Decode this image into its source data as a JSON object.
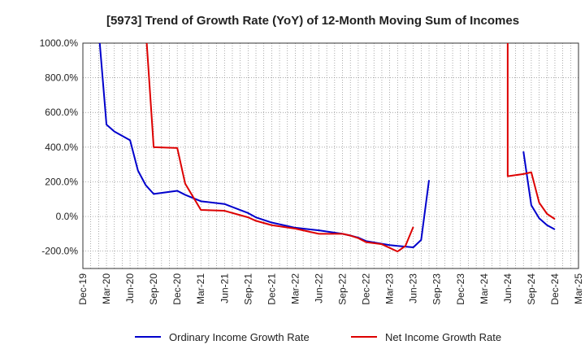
{
  "chart_data": {
    "type": "line",
    "title": "[5973]  Trend of Growth Rate (YoY) of 12-Month Moving Sum of Incomes",
    "xlabel": "",
    "ylabel": "",
    "x_ticks": [
      "Dec-19",
      "Mar-20",
      "Jun-20",
      "Sep-20",
      "Dec-20",
      "Mar-21",
      "Jun-21",
      "Sep-21",
      "Dec-21",
      "Mar-22",
      "Jun-22",
      "Sep-22",
      "Dec-22",
      "Mar-23",
      "Jun-23",
      "Sep-23",
      "Dec-23",
      "Mar-24",
      "Jun-24",
      "Sep-24",
      "Dec-24",
      "Mar-25"
    ],
    "y_ticks": [
      -200,
      0,
      200,
      400,
      600,
      800,
      1000
    ],
    "y_tick_labels": [
      "-200.0%",
      "0.0%",
      "200.0%",
      "400.0%",
      "600.0%",
      "800.0%",
      "1000.0%"
    ],
    "ylim": [
      -300,
      1000
    ],
    "xlim": [
      "2019-12",
      "2025-03"
    ],
    "grid": true,
    "legend_position": "bottom",
    "series": [
      {
        "name": "Ordinary Income Growth Rate",
        "color": "#0000cc",
        "points": [
          {
            "x": "2020-02",
            "y": 1000,
            "clip": "top"
          },
          {
            "x": "2020-03",
            "y": 530
          },
          {
            "x": "2020-04",
            "y": 490
          },
          {
            "x": "2020-05",
            "y": 465
          },
          {
            "x": "2020-06",
            "y": 440
          },
          {
            "x": "2020-07",
            "y": 265
          },
          {
            "x": "2020-08",
            "y": 180
          },
          {
            "x": "2020-09",
            "y": 130
          },
          {
            "x": "2020-12",
            "y": 148
          },
          {
            "x": "2021-01",
            "y": 125
          },
          {
            "x": "2021-03",
            "y": 88
          },
          {
            "x": "2021-06",
            "y": 72
          },
          {
            "x": "2021-09",
            "y": 20
          },
          {
            "x": "2021-10",
            "y": -5
          },
          {
            "x": "2021-12",
            "y": -35
          },
          {
            "x": "2022-03",
            "y": -65
          },
          {
            "x": "2022-06",
            "y": -80
          },
          {
            "x": "2022-09",
            "y": -100
          },
          {
            "x": "2022-10",
            "y": -110
          },
          {
            "x": "2022-11",
            "y": -122
          },
          {
            "x": "2022-12",
            "y": -142
          },
          {
            "x": "2023-03",
            "y": -165
          },
          {
            "x": "2023-04",
            "y": -170
          },
          {
            "x": "2023-06",
            "y": -178
          },
          {
            "x": "2023-07",
            "y": -135
          },
          {
            "x": "2023-08",
            "y": 210
          },
          null,
          {
            "x": "2024-08",
            "y": 375
          },
          {
            "x": "2024-09",
            "y": 65
          },
          {
            "x": "2024-10",
            "y": -10
          },
          {
            "x": "2024-11",
            "y": -50
          },
          {
            "x": "2024-12",
            "y": -75
          }
        ]
      },
      {
        "name": "Net Income Growth Rate",
        "color": "#dd0000",
        "points": [
          {
            "x": "2020-08",
            "y": 1000,
            "clip": "top"
          },
          {
            "x": "2020-09",
            "y": 400
          },
          {
            "x": "2020-12",
            "y": 395
          },
          {
            "x": "2021-01",
            "y": 190
          },
          {
            "x": "2021-03",
            "y": 38
          },
          {
            "x": "2021-06",
            "y": 33
          },
          {
            "x": "2021-09",
            "y": -5
          },
          {
            "x": "2021-10",
            "y": -25
          },
          {
            "x": "2021-12",
            "y": -50
          },
          {
            "x": "2022-03",
            "y": -70
          },
          {
            "x": "2022-06",
            "y": -100
          },
          {
            "x": "2022-09",
            "y": -100
          },
          {
            "x": "2022-10",
            "y": -110
          },
          {
            "x": "2022-11",
            "y": -125
          },
          {
            "x": "2022-12",
            "y": -148
          },
          {
            "x": "2023-02",
            "y": -160
          },
          {
            "x": "2023-04",
            "y": -202
          },
          {
            "x": "2023-05",
            "y": -170
          },
          {
            "x": "2023-06",
            "y": -60
          },
          null,
          {
            "x": "2024-06",
            "y": 1000,
            "clip": "top"
          },
          {
            "x": "2024-06",
            "y": 232
          },
          {
            "x": "2024-08",
            "y": 245
          },
          {
            "x": "2024-09",
            "y": 255
          },
          {
            "x": "2024-10",
            "y": 80
          },
          {
            "x": "2024-11",
            "y": 15
          },
          {
            "x": "2024-12",
            "y": -15
          }
        ]
      }
    ]
  }
}
